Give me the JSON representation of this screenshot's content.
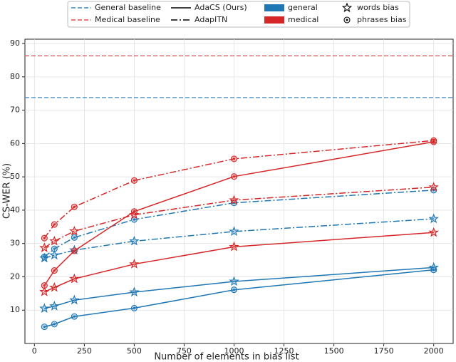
{
  "chart_data": {
    "type": "line",
    "y_label": "CS-WER (%)",
    "x_label": "Number of elements in bias list",
    "x": [
      50,
      100,
      200,
      500,
      1000,
      2000
    ],
    "xlim": [
      -47.5,
      2097.5
    ],
    "xticks": [
      0,
      250,
      500,
      750,
      1000,
      1250,
      1500,
      1750,
      2000
    ],
    "ylim": [
      0,
      91.3
    ],
    "yticks": [
      10,
      20,
      30,
      40,
      50,
      60,
      70,
      80,
      90
    ],
    "grid": true,
    "baselines": [
      {
        "value": 73.8,
        "color": "#3b8bc2",
        "linestyle": "dashed"
      },
      {
        "value": 86.3,
        "color": "#e04c4c",
        "linestyle": "dashed"
      }
    ],
    "series": [
      {
        "color": "#1f77b4",
        "linestyle": "solid",
        "marker": "star",
        "values": [
          10.5,
          11.2,
          13.0,
          15.4,
          18.6,
          22.8
        ]
      },
      {
        "color": "#1f77b4",
        "linestyle": "solid",
        "marker": "circle",
        "values": [
          5.0,
          5.8,
          8.1,
          10.6,
          16.1,
          22.1
        ]
      },
      {
        "color": "#1f77b4",
        "linestyle": "dashdot",
        "marker": "star",
        "values": [
          25.6,
          26.5,
          28.0,
          30.7,
          33.6,
          37.4
        ]
      },
      {
        "color": "#1f77b4",
        "linestyle": "dashdot",
        "marker": "circle",
        "values": [
          26.0,
          28.4,
          31.8,
          37.2,
          42.2,
          46.0
        ]
      },
      {
        "color": "#d62728",
        "linestyle": "solid",
        "marker": "star",
        "values": [
          15.5,
          16.8,
          19.4,
          23.8,
          29.0,
          33.3
        ]
      },
      {
        "color": "#d62728",
        "linestyle": "solid",
        "marker": "circle",
        "values": [
          17.4,
          21.9,
          27.8,
          39.6,
          50.1,
          60.5
        ]
      },
      {
        "color": "#d62728",
        "linestyle": "dashdot",
        "marker": "star",
        "values": [
          28.7,
          30.7,
          33.7,
          38.6,
          43.0,
          46.9
        ]
      },
      {
        "color": "#d62728",
        "linestyle": "dashdot",
        "marker": "circle",
        "values": [
          31.6,
          35.7,
          41.0,
          48.9,
          55.4,
          60.9
        ]
      }
    ],
    "legend": [
      {
        "label": "General baseline",
        "kind": "line",
        "color": "#3b8bc2",
        "linestyle": "dashed"
      },
      {
        "label": "Medical baseline",
        "kind": "line",
        "color": "#e04c4c",
        "linestyle": "dashed"
      },
      {
        "label": "AdaCS (Ours)",
        "kind": "line",
        "color": "#000000",
        "linestyle": "solid"
      },
      {
        "label": "AdapITN",
        "kind": "line",
        "color": "#000000",
        "linestyle": "dashdot"
      },
      {
        "label": "general",
        "kind": "patch",
        "color": "#1f77b4"
      },
      {
        "label": "medical",
        "kind": "patch",
        "color": "#d62728"
      },
      {
        "label": "words bias",
        "kind": "marker",
        "marker": "star"
      },
      {
        "label": "phrases bias",
        "kind": "marker",
        "marker": "circle"
      }
    ]
  }
}
